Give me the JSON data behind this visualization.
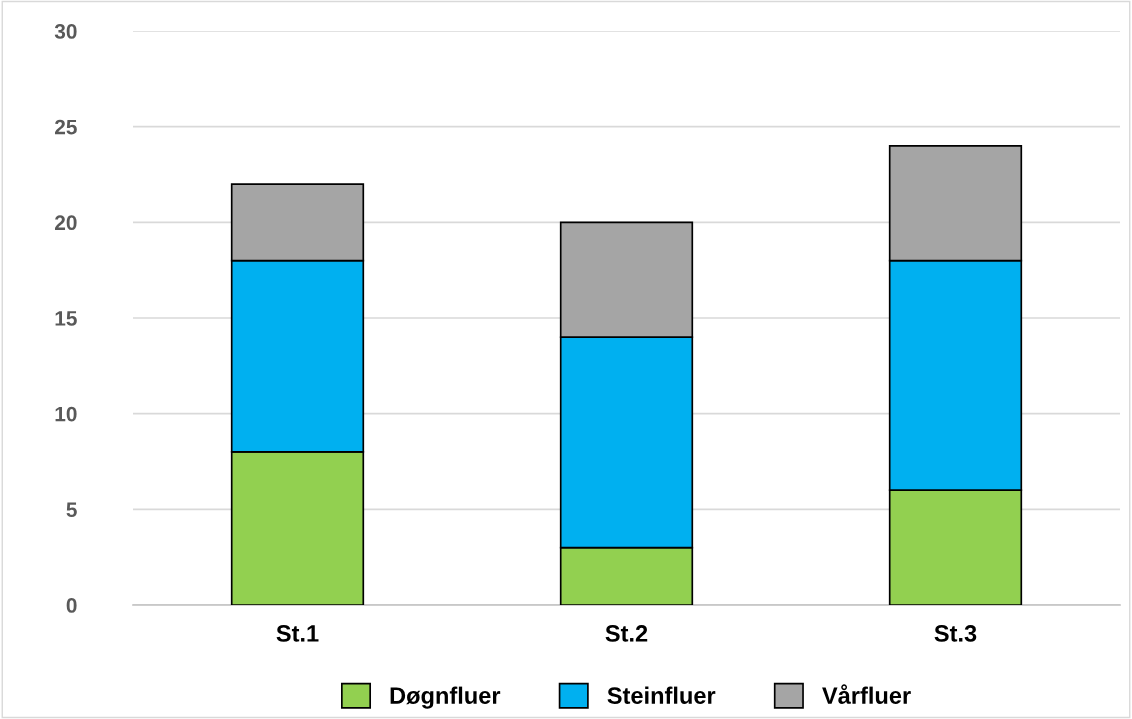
{
  "chart_data": {
    "type": "bar",
    "stacked": true,
    "categories": [
      "St.1",
      "St.2",
      "St.3"
    ],
    "series": [
      {
        "name": "Døgnfluer",
        "color": "#92d050",
        "values": [
          8,
          3,
          6
        ]
      },
      {
        "name": "Steinfluer",
        "color": "#00b0f0",
        "values": [
          10,
          11,
          12
        ]
      },
      {
        "name": "Vårfluer",
        "color": "#a5a5a5",
        "values": [
          4,
          6,
          6
        ]
      }
    ],
    "ylim": [
      0,
      30
    ],
    "yticks": [
      0,
      5,
      10,
      15,
      20,
      25,
      30
    ],
    "grid": "y",
    "legend": "bottom"
  }
}
